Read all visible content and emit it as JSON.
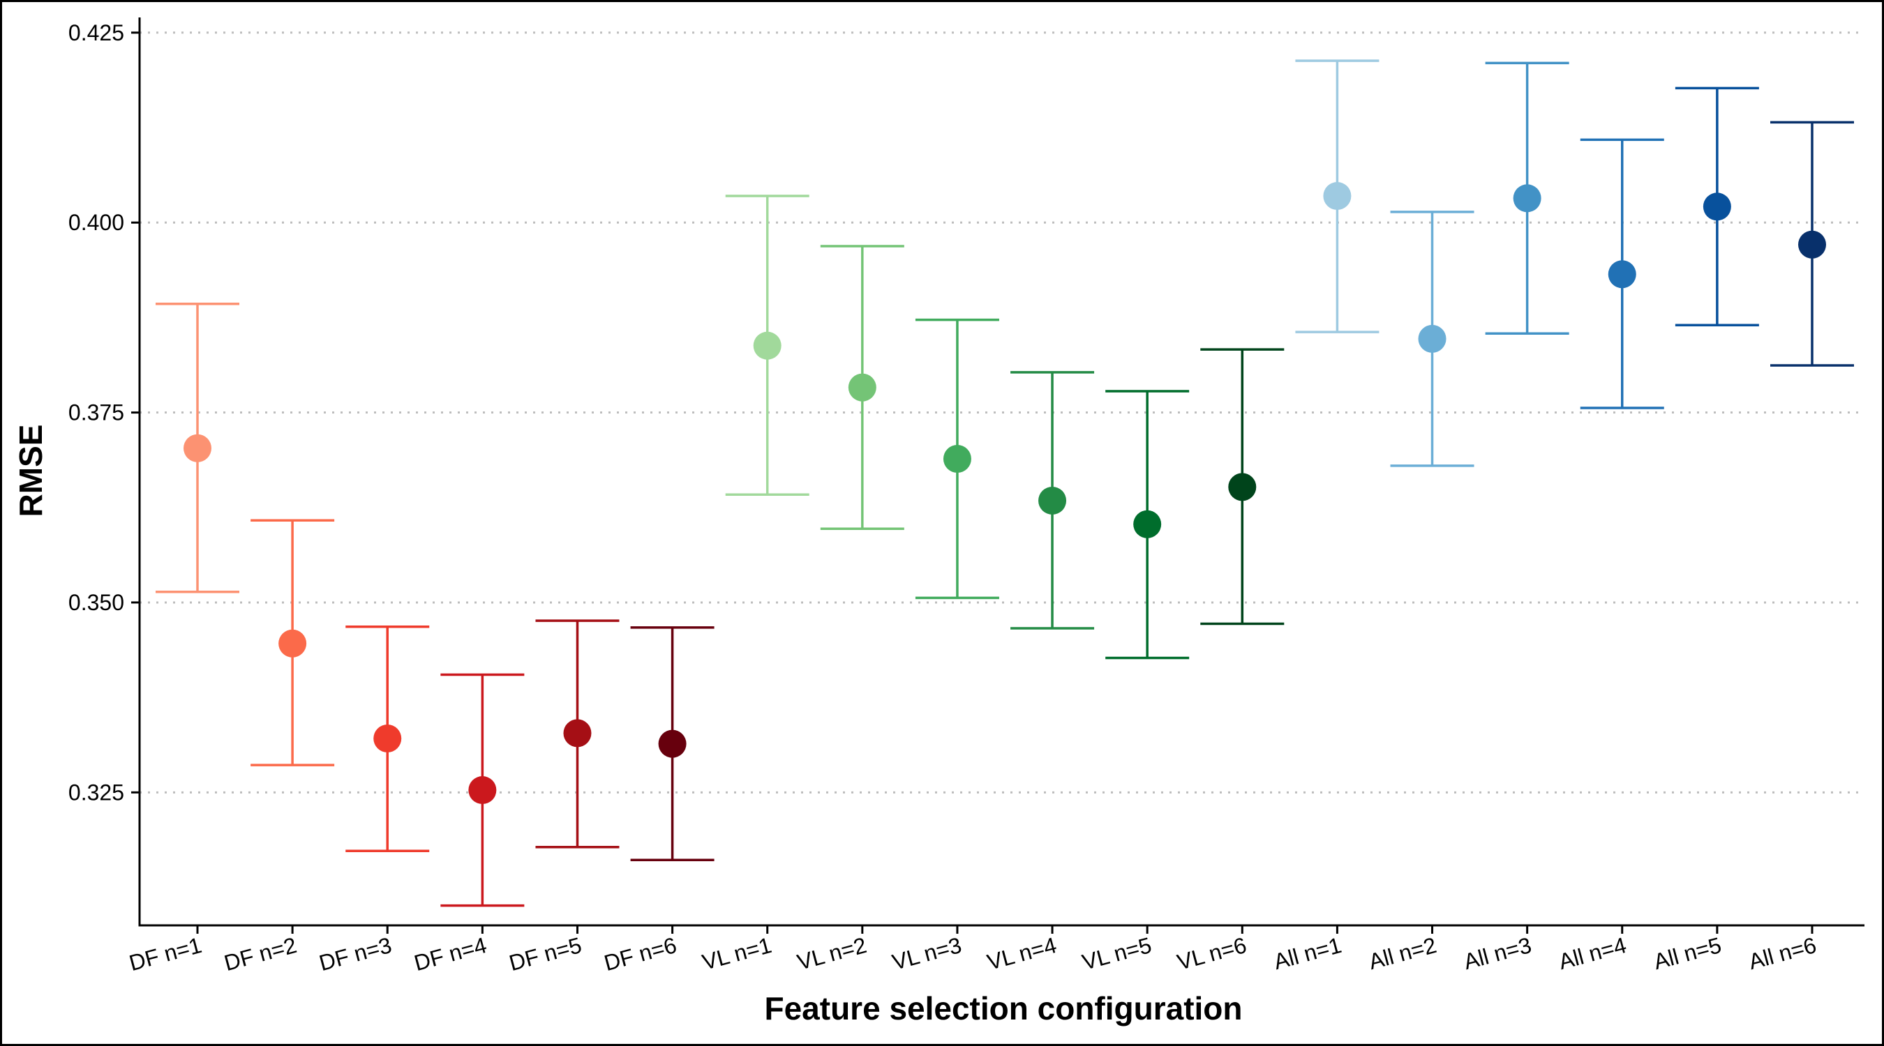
{
  "chart_data": {
    "type": "scatter",
    "subtype": "point-with-error-bars",
    "title": "",
    "xlabel": "Feature selection configuration",
    "ylabel": "RMSE",
    "ylim": [
      0.3075,
      0.427
    ],
    "yticks": [
      0.325,
      0.35,
      0.375,
      0.4,
      0.425
    ],
    "ytick_labels": [
      "0.325",
      "0.350",
      "0.375",
      "0.400",
      "0.425"
    ],
    "grid": "horizontal dotted at y ticks",
    "legend": "none",
    "categories": [
      "DF n=1",
      "DF n=2",
      "DF n=3",
      "DF n=4",
      "DF n=5",
      "DF n=6",
      "VL n=1",
      "VL n=2",
      "VL n=3",
      "VL n=4",
      "VL n=5",
      "VL n=6",
      "All n=1",
      "All n=2",
      "All n=3",
      "All n=4",
      "All n=5",
      "All n=6"
    ],
    "points": [
      {
        "x": "DF n=1",
        "y": 0.3703,
        "ymin": 0.3514,
        "ymax": 0.3893,
        "color": "#FC9272"
      },
      {
        "x": "DF n=2",
        "y": 0.3446,
        "ymin": 0.3286,
        "ymax": 0.3608,
        "color": "#FB6A4A"
      },
      {
        "x": "DF n=3",
        "y": 0.3321,
        "ymin": 0.3173,
        "ymax": 0.3468,
        "color": "#EF3B2C"
      },
      {
        "x": "DF n=4",
        "y": 0.3253,
        "ymin": 0.3101,
        "ymax": 0.3405,
        "color": "#CB181D"
      },
      {
        "x": "DF n=5",
        "y": 0.3328,
        "ymin": 0.3178,
        "ymax": 0.3476,
        "color": "#A50F15"
      },
      {
        "x": "DF n=6",
        "y": 0.3314,
        "ymin": 0.3161,
        "ymax": 0.3467,
        "color": "#67000D"
      },
      {
        "x": "VL n=1",
        "y": 0.3838,
        "ymin": 0.3642,
        "ymax": 0.4035,
        "color": "#A1D99B"
      },
      {
        "x": "VL n=2",
        "y": 0.3783,
        "ymin": 0.3597,
        "ymax": 0.3969,
        "color": "#74C476"
      },
      {
        "x": "VL n=3",
        "y": 0.3689,
        "ymin": 0.3506,
        "ymax": 0.3872,
        "color": "#41AB5D"
      },
      {
        "x": "VL n=4",
        "y": 0.3634,
        "ymin": 0.3466,
        "ymax": 0.3803,
        "color": "#238B45"
      },
      {
        "x": "VL n=5",
        "y": 0.3603,
        "ymin": 0.3427,
        "ymax": 0.3778,
        "color": "#006D2C"
      },
      {
        "x": "VL n=6",
        "y": 0.3652,
        "ymin": 0.3472,
        "ymax": 0.3833,
        "color": "#00441B"
      },
      {
        "x": "All n=1",
        "y": 0.4035,
        "ymin": 0.3856,
        "ymax": 0.4213,
        "color": "#9ECAE1"
      },
      {
        "x": "All n=2",
        "y": 0.3847,
        "ymin": 0.368,
        "ymax": 0.4014,
        "color": "#6BAED6"
      },
      {
        "x": "All n=3",
        "y": 0.4032,
        "ymin": 0.3854,
        "ymax": 0.421,
        "color": "#4292C6"
      },
      {
        "x": "All n=4",
        "y": 0.3932,
        "ymin": 0.3756,
        "ymax": 0.4109,
        "color": "#2171B5"
      },
      {
        "x": "All n=5",
        "y": 0.4021,
        "ymin": 0.3865,
        "ymax": 0.4177,
        "color": "#08519C"
      },
      {
        "x": "All n=6",
        "y": 0.3971,
        "ymin": 0.3812,
        "ymax": 0.4132,
        "color": "#08306B"
      }
    ]
  }
}
